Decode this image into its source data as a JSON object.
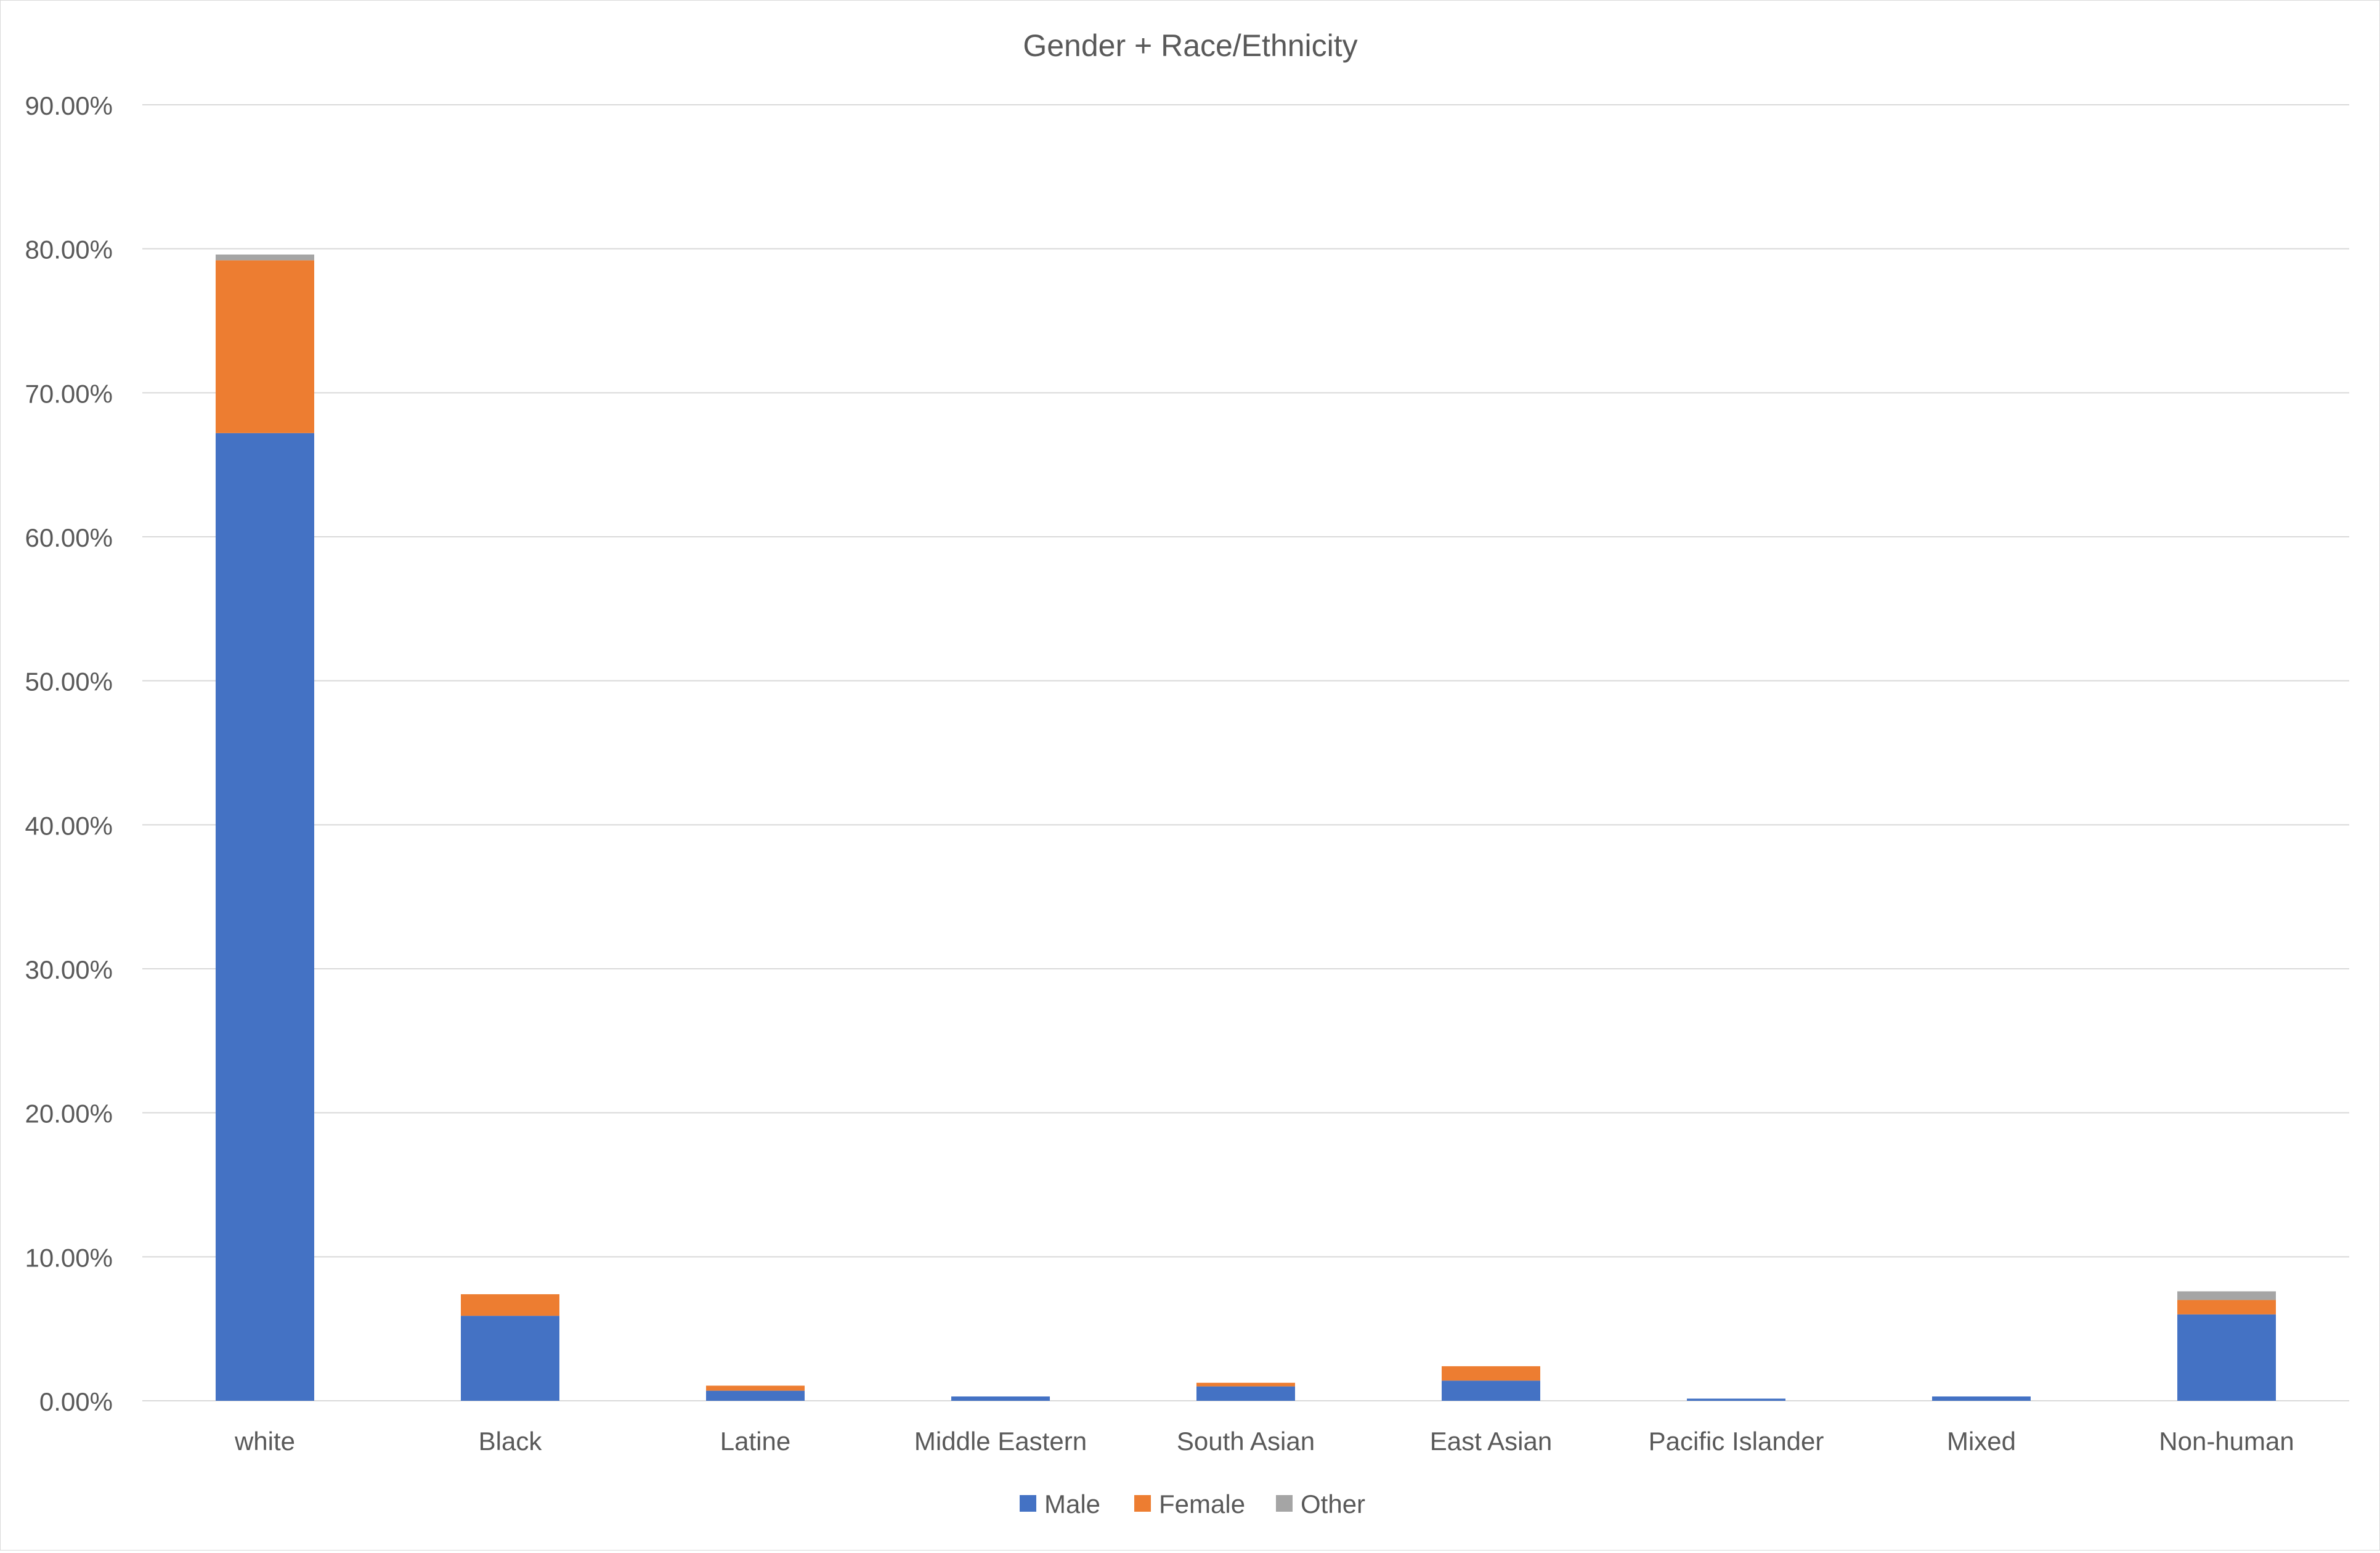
{
  "chart_data": {
    "type": "bar",
    "stacked": true,
    "title": "Gender + Race/Ethnicity",
    "xlabel": "",
    "ylabel": "",
    "ylim": [
      0,
      90
    ],
    "yticks": [
      0,
      10,
      20,
      30,
      40,
      50,
      60,
      70,
      80,
      90
    ],
    "ytick_labels": [
      "0.00%",
      "10.00%",
      "20.00%",
      "30.00%",
      "40.00%",
      "50.00%",
      "60.00%",
      "70.00%",
      "80.00%",
      "90.00%"
    ],
    "grid": true,
    "legend_position": "bottom",
    "categories": [
      "white",
      "Black",
      "Latine",
      "Middle Eastern",
      "South Asian",
      "East Asian",
      "Pacific Islander",
      "Mixed",
      "Non-human"
    ],
    "series": [
      {
        "name": "Male",
        "color": "#4472c4",
        "values": [
          67.2,
          5.9,
          0.7,
          0.3,
          1.0,
          1.4,
          0.15,
          0.3,
          6.0
        ]
      },
      {
        "name": "Female",
        "color": "#ed7d31",
        "values": [
          12.0,
          1.5,
          0.35,
          0.0,
          0.25,
          1.0,
          0.0,
          0.0,
          1.0
        ]
      },
      {
        "name": "Other",
        "color": "#a5a5a5",
        "values": [
          0.4,
          0.0,
          0.0,
          0.0,
          0.0,
          0.0,
          0.0,
          0.0,
          0.6
        ]
      }
    ]
  }
}
